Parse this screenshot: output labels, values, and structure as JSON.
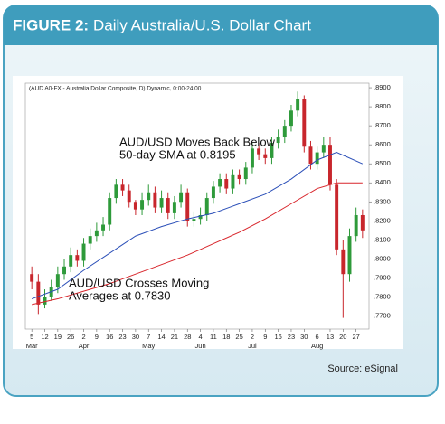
{
  "chart_data": {
    "type": "candlestick",
    "title_prefix": "FIGURE 2:",
    "title": "Daily Australia/U.S. Dollar Chart",
    "subtitle": "(AUD A0-FX - Australia Dollar Composite, D) Dynamic, 0:00-24:00",
    "annotations": [
      {
        "lines": [
          "AUD/USD Moves Back Below",
          "50-day SMA at 0.8195"
        ]
      },
      {
        "lines": [
          "AUD/USD Crosses Moving",
          "Averages at 0.7830"
        ]
      }
    ],
    "source": "Source:  eSignal",
    "up_color": "#2e9a3a",
    "down_color": "#c8262c",
    "open": [
      0.792,
      0.788,
      0.776,
      0.78,
      0.785,
      0.792,
      0.796,
      0.802,
      0.799,
      0.808,
      0.812,
      0.815,
      0.818,
      0.832,
      0.839,
      0.836,
      0.83,
      0.826,
      0.831,
      0.835,
      0.827,
      0.832,
      0.824,
      0.83,
      0.835,
      0.82,
      0.821,
      0.823,
      0.832,
      0.838,
      0.842,
      0.837,
      0.844,
      0.842,
      0.848,
      0.858,
      0.855,
      0.853,
      0.861,
      0.864,
      0.87,
      0.878,
      0.884,
      0.859,
      0.85,
      0.856,
      0.86,
      0.839,
      0.805,
      0.792,
      0.812,
      0.823
    ],
    "high": [
      0.796,
      0.792,
      0.784,
      0.789,
      0.796,
      0.8,
      0.806,
      0.805,
      0.811,
      0.816,
      0.819,
      0.822,
      0.835,
      0.842,
      0.842,
      0.839,
      0.831,
      0.835,
      0.839,
      0.838,
      0.836,
      0.835,
      0.833,
      0.839,
      0.837,
      0.825,
      0.827,
      0.835,
      0.841,
      0.845,
      0.845,
      0.847,
      0.847,
      0.851,
      0.861,
      0.861,
      0.858,
      0.864,
      0.868,
      0.873,
      0.881,
      0.888,
      0.886,
      0.862,
      0.859,
      0.864,
      0.864,
      0.842,
      0.81,
      0.816,
      0.827,
      0.826
    ],
    "low": [
      0.784,
      0.771,
      0.774,
      0.778,
      0.782,
      0.789,
      0.793,
      0.796,
      0.796,
      0.805,
      0.809,
      0.812,
      0.815,
      0.829,
      0.833,
      0.827,
      0.823,
      0.823,
      0.828,
      0.824,
      0.824,
      0.821,
      0.821,
      0.827,
      0.817,
      0.817,
      0.818,
      0.82,
      0.829,
      0.835,
      0.834,
      0.834,
      0.839,
      0.839,
      0.845,
      0.852,
      0.85,
      0.85,
      0.858,
      0.861,
      0.867,
      0.875,
      0.856,
      0.847,
      0.847,
      0.853,
      0.836,
      0.802,
      0.769,
      0.788,
      0.809,
      0.811
    ],
    "close": [
      0.788,
      0.776,
      0.78,
      0.785,
      0.792,
      0.796,
      0.802,
      0.799,
      0.808,
      0.812,
      0.815,
      0.818,
      0.832,
      0.839,
      0.836,
      0.83,
      0.826,
      0.831,
      0.835,
      0.827,
      0.832,
      0.824,
      0.83,
      0.835,
      0.82,
      0.821,
      0.823,
      0.832,
      0.838,
      0.842,
      0.837,
      0.844,
      0.842,
      0.848,
      0.858,
      0.855,
      0.853,
      0.861,
      0.864,
      0.87,
      0.878,
      0.884,
      0.859,
      0.85,
      0.856,
      0.86,
      0.839,
      0.805,
      0.792,
      0.812,
      0.823,
      0.815
    ],
    "lines": [
      {
        "color": "#2b4fb8",
        "x": [
          0,
          4,
          8,
          12,
          16,
          20,
          24,
          28,
          32,
          36,
          40,
          44,
          47,
          51
        ],
        "values": [
          0.779,
          0.784,
          0.794,
          0.803,
          0.812,
          0.817,
          0.821,
          0.824,
          0.829,
          0.834,
          0.842,
          0.852,
          0.856,
          0.85
        ]
      },
      {
        "color": "#d8252b",
        "x": [
          0,
          4,
          8,
          12,
          16,
          20,
          24,
          28,
          32,
          36,
          40,
          44,
          47,
          51
        ],
        "values": [
          0.776,
          0.779,
          0.783,
          0.787,
          0.792,
          0.797,
          0.802,
          0.808,
          0.814,
          0.821,
          0.829,
          0.837,
          0.84,
          0.84
        ]
      }
    ],
    "xlim": [
      -1,
      52
    ],
    "xticks": [
      {
        "value": 0,
        "label": "5"
      },
      {
        "value": 2,
        "label": "12"
      },
      {
        "value": 4,
        "label": "19"
      },
      {
        "value": 6,
        "label": "26"
      },
      {
        "value": 8,
        "label": "2"
      },
      {
        "value": 10,
        "label": "9"
      },
      {
        "value": 12,
        "label": "16"
      },
      {
        "value": 14,
        "label": "23"
      },
      {
        "value": 16,
        "label": "30"
      },
      {
        "value": 18,
        "label": "7"
      },
      {
        "value": 20,
        "label": "14"
      },
      {
        "value": 22,
        "label": "21"
      },
      {
        "value": 24,
        "label": "28"
      },
      {
        "value": 26,
        "label": "4"
      },
      {
        "value": 28,
        "label": "11"
      },
      {
        "value": 30,
        "label": "18"
      },
      {
        "value": 32,
        "label": "25"
      },
      {
        "value": 34,
        "label": "2"
      },
      {
        "value": 36,
        "label": "9"
      },
      {
        "value": 38,
        "label": "16"
      },
      {
        "value": 40,
        "label": "23"
      },
      {
        "value": 42,
        "label": "30"
      },
      {
        "value": 44,
        "label": "6"
      },
      {
        "value": 46,
        "label": "13"
      },
      {
        "value": 48,
        "label": "20"
      },
      {
        "value": 50,
        "label": "27"
      }
    ],
    "months": [
      {
        "value": 0,
        "label": "Mar"
      },
      {
        "value": 8,
        "label": "Apr"
      },
      {
        "value": 18,
        "label": "May"
      },
      {
        "value": 26,
        "label": "Jun"
      },
      {
        "value": 34,
        "label": "Jul"
      },
      {
        "value": 44,
        "label": "Aug"
      }
    ],
    "ylim": [
      0.765,
      0.8905
    ],
    "yticks": [
      {
        "value": 0.77,
        "label": ".7700"
      },
      {
        "value": 0.78,
        "label": ".7800"
      },
      {
        "value": 0.79,
        "label": ".7900"
      },
      {
        "value": 0.8,
        "label": ".8000"
      },
      {
        "value": 0.81,
        "label": ".8100"
      },
      {
        "value": 0.82,
        "label": ".8200"
      },
      {
        "value": 0.83,
        "label": ".8300"
      },
      {
        "value": 0.84,
        "label": ".8400"
      },
      {
        "value": 0.85,
        "label": ".8500"
      },
      {
        "value": 0.86,
        "label": ".8600"
      },
      {
        "value": 0.87,
        "label": ".8700"
      },
      {
        "value": 0.88,
        "label": ".8800"
      },
      {
        "value": 0.89,
        "label": ".8900"
      }
    ]
  }
}
